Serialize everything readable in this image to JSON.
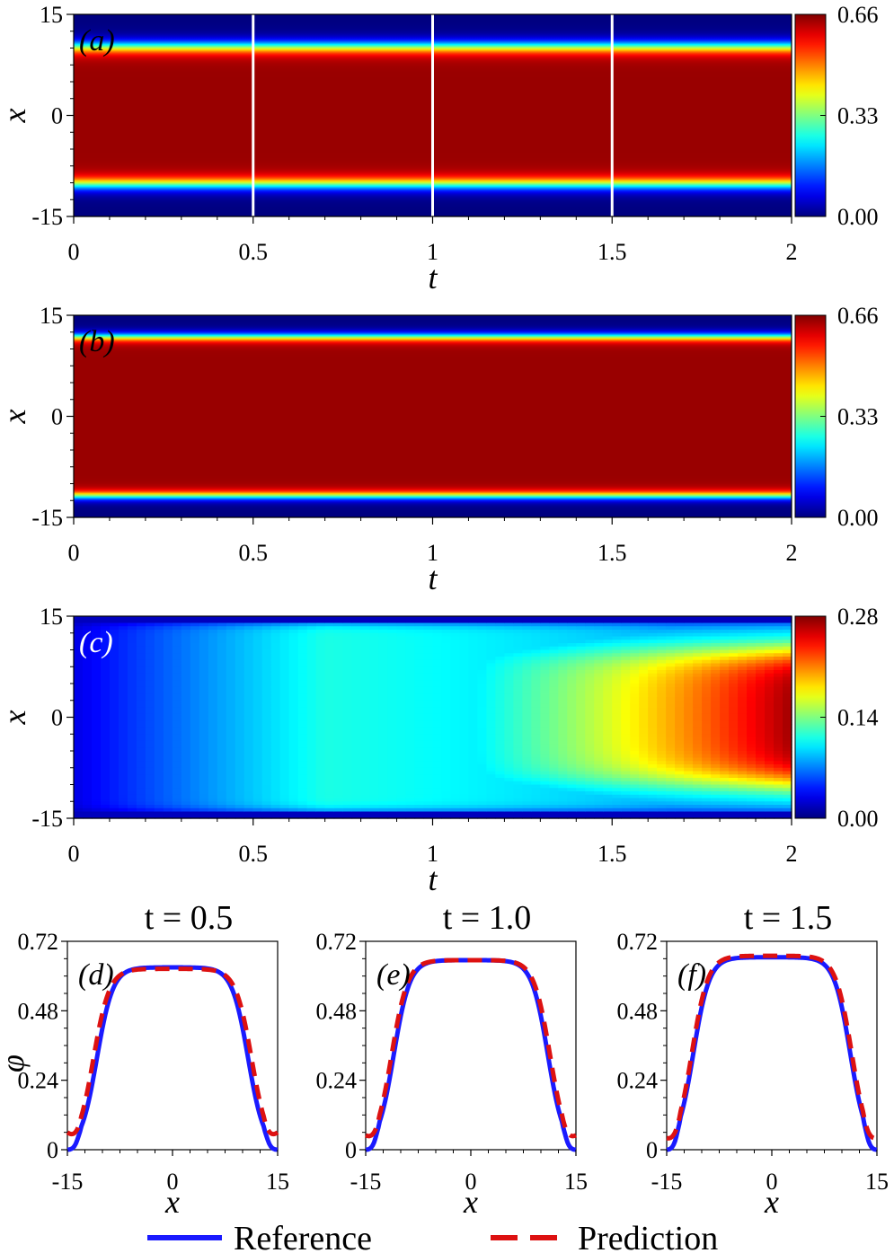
{
  "chart_data": [
    {
      "panel": "(a)",
      "type": "heatmap",
      "xlabel": "t",
      "ylabel": "x",
      "xlim": [
        0,
        2
      ],
      "ylim": [
        -15,
        15
      ],
      "xticks": [
        "0",
        "0.5",
        "1",
        "1.5",
        "2"
      ],
      "yticks": [
        "15",
        "0",
        "-15"
      ],
      "colorbar": {
        "min": 0.0,
        "max": 0.66,
        "ticks": [
          "0.66",
          "0.33",
          "0.00"
        ],
        "colormap": "jet"
      },
      "field": {
        "plateau_value": 0.66,
        "interface_half_width": 10.2,
        "interface_width": 1.2
      },
      "marker_lines_t": [
        0.5,
        1.0,
        1.5
      ],
      "marker_line_color": "#ffffff",
      "tag_color": "#000000"
    },
    {
      "panel": "(b)",
      "type": "heatmap",
      "xlabel": "t",
      "ylabel": "x",
      "xlim": [
        0,
        2
      ],
      "ylim": [
        -15,
        15
      ],
      "xticks": [
        "0",
        "0.5",
        "1",
        "1.5",
        "2"
      ],
      "yticks": [
        "15",
        "0",
        "-15"
      ],
      "colorbar": {
        "min": 0.0,
        "max": 0.66,
        "ticks": [
          "0.66",
          "0.33",
          "0.00"
        ],
        "colormap": "jet"
      },
      "field": {
        "plateau_value": 0.66,
        "interface_half_width": 11.8,
        "interface_width": 0.8
      },
      "marker_lines_t": [],
      "tag_color": "#000000"
    },
    {
      "panel": "(c)",
      "type": "heatmap",
      "xlabel": "t",
      "ylabel": "x",
      "xlim": [
        0,
        2
      ],
      "ylim": [
        -15,
        15
      ],
      "xticks": [
        "0",
        "0.5",
        "1",
        "1.5",
        "2"
      ],
      "yticks": [
        "15",
        "0",
        "-15"
      ],
      "colorbar": {
        "min": 0.0,
        "max": 0.28,
        "ticks": [
          "0.28",
          "0.14",
          "0.00"
        ],
        "colormap": "jet"
      },
      "field": {
        "description_values": "error grows with t, max ~0.28 near center at t=2",
        "max_value": 0.28
      },
      "marker_lines_t": [],
      "tag_color": "#ffffff"
    },
    {
      "panel": "(d)",
      "type": "line",
      "title": "t = 0.5",
      "xlabel": "x",
      "ylabel": "φ",
      "xlim": [
        -15,
        15
      ],
      "ylim": [
        0,
        0.72
      ],
      "xticks": [
        "-15",
        "0",
        "15"
      ],
      "yticks": [
        "0.72",
        "0.48",
        "0.24",
        "0"
      ],
      "series": [
        {
          "name": "Reference",
          "plateau": 0.63,
          "half_width": 10.8,
          "edge_value": 0.0
        },
        {
          "name": "Prediction",
          "plateau": 0.625,
          "half_width": 11.3,
          "edge_value": 0.06
        }
      ]
    },
    {
      "panel": "(e)",
      "type": "line",
      "title": "t = 1.0",
      "xlabel": "x",
      "ylabel": "",
      "xlim": [
        -15,
        15
      ],
      "ylim": [
        0,
        0.72
      ],
      "xticks": [
        "-15",
        "0",
        "15"
      ],
      "yticks": [
        "0.72",
        "0.48",
        "0.24",
        "0"
      ],
      "series": [
        {
          "name": "Reference",
          "plateau": 0.655,
          "half_width": 11.0,
          "edge_value": 0.0
        },
        {
          "name": "Prediction",
          "plateau": 0.655,
          "half_width": 11.3,
          "edge_value": 0.05
        }
      ]
    },
    {
      "panel": "(f)",
      "type": "line",
      "title": "t = 1.5",
      "xlabel": "x",
      "ylabel": "",
      "xlim": [
        -15,
        15
      ],
      "ylim": [
        0,
        0.72
      ],
      "xticks": [
        "-15",
        "0",
        "15"
      ],
      "yticks": [
        "0.72",
        "0.48",
        "0.24",
        "0"
      ],
      "series": [
        {
          "name": "Reference",
          "plateau": 0.665,
          "half_width": 11.2,
          "edge_value": 0.0
        },
        {
          "name": "Prediction",
          "plateau": 0.67,
          "half_width": 11.4,
          "edge_value": 0.04
        }
      ]
    }
  ],
  "legend": {
    "items": [
      {
        "label": "Reference",
        "color": "#1a1aff",
        "style": "solid"
      },
      {
        "label": "Prediction",
        "color": "#dd1111",
        "style": "dashed"
      }
    ],
    "placement": "bottom-center"
  }
}
